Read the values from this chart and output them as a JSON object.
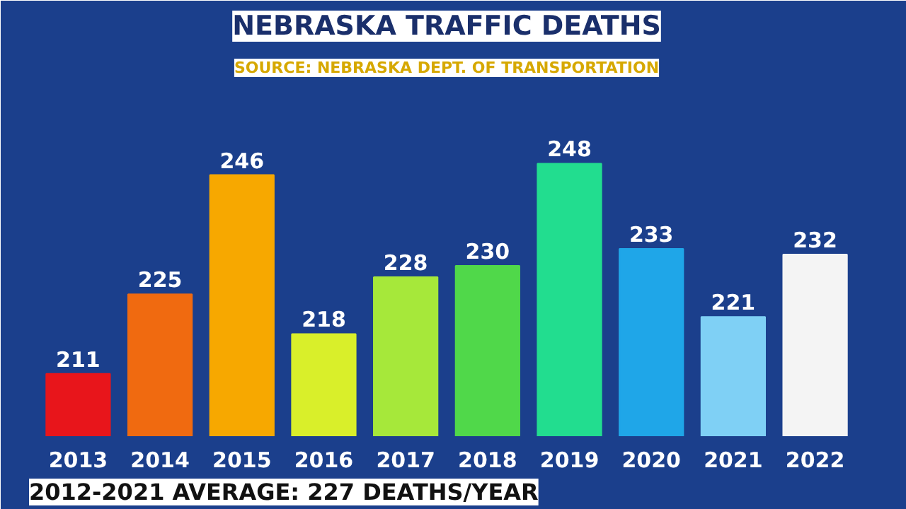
{
  "chart_data": {
    "type": "bar",
    "title": "NEBRASKA TRAFFIC DEATHS",
    "subtitle": "SOURCE: NEBRASKA DEPT. OF TRANSPORTATION",
    "categories": [
      "2013",
      "2014",
      "2015",
      "2016",
      "2017",
      "2018",
      "2019",
      "2020",
      "2021",
      "2022"
    ],
    "values": [
      211,
      225,
      246,
      218,
      228,
      230,
      248,
      233,
      221,
      232
    ],
    "colors": [
      "#e8151b",
      "#f06a10",
      "#f7a800",
      "#d9ef2a",
      "#a6e83a",
      "#50d84a",
      "#22dd8f",
      "#1fa6e8",
      "#7fd0f5",
      "#f4f4f4"
    ],
    "ylim": [
      200,
      262
    ],
    "tick_labels": "x",
    "data_labels": true,
    "grid": false,
    "annotations": [
      "2012-2021 AVERAGE: 227 DEATHS/YEAR"
    ]
  }
}
